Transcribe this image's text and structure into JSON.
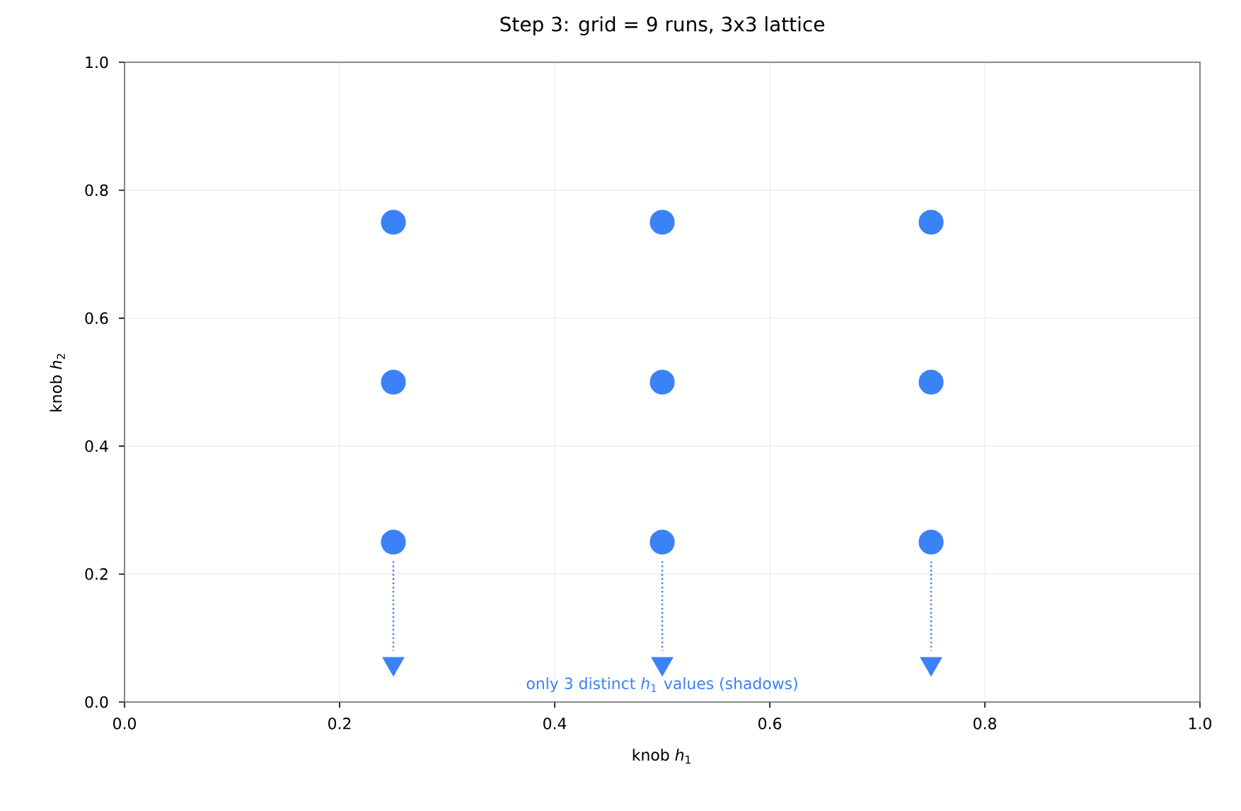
{
  "chart_data": {
    "type": "scatter",
    "title": "Step 3: grid = 9 runs, 3x3 lattice",
    "xlabel": "knob *h*$_{1}$",
    "ylabel": "knob *h*$_{2}$",
    "xlim": [
      0,
      1
    ],
    "ylim": [
      0,
      1
    ],
    "xticks": [
      {
        "value": 0,
        "label": "0.0"
      },
      0.2,
      0.4,
      0.6,
      0.8,
      {
        "value": 1,
        "label": "1.0"
      }
    ],
    "yticks": [
      {
        "value": 0,
        "label": "0.0"
      },
      0.2,
      0.4,
      0.6,
      0.8,
      {
        "value": 1,
        "label": "1.0"
      }
    ],
    "grid": true,
    "series": [
      {
        "marker": "circle",
        "color": "#3b82f6",
        "x": [
          0.25,
          0.25,
          0.25,
          0.5,
          0.5,
          0.5,
          0.75,
          0.75,
          0.75
        ],
        "values": [
          0.25,
          0.5,
          0.75,
          0.25,
          0.5,
          0.75,
          0.25,
          0.5,
          0.75
        ]
      },
      {
        "type": "line",
        "marker": "none",
        "line_style": "dotted",
        "color": "#3b82f6",
        "x": [
          0.25,
          0.25
        ],
        "values": [
          0.22,
          0.08
        ]
      },
      {
        "type": "line",
        "marker": "none",
        "line_style": "dotted",
        "color": "#3b82f6",
        "x": [
          0.5,
          0.5
        ],
        "values": [
          0.22,
          0.08
        ]
      },
      {
        "type": "line",
        "marker": "none",
        "line_style": "dotted",
        "color": "#3b82f6",
        "x": [
          0.75,
          0.75
        ],
        "values": [
          0.22,
          0.08
        ]
      },
      {
        "type": "scatter",
        "marker": "triangle",
        "color": "#3b82f6",
        "x": [
          0.25,
          0.5,
          0.75
        ],
        "values": [
          0.06,
          0.06,
          0.06
        ]
      }
    ],
    "annotations": [
      "only 3 distinct *h*$_{1}$ values (shadows)"
    ]
  }
}
